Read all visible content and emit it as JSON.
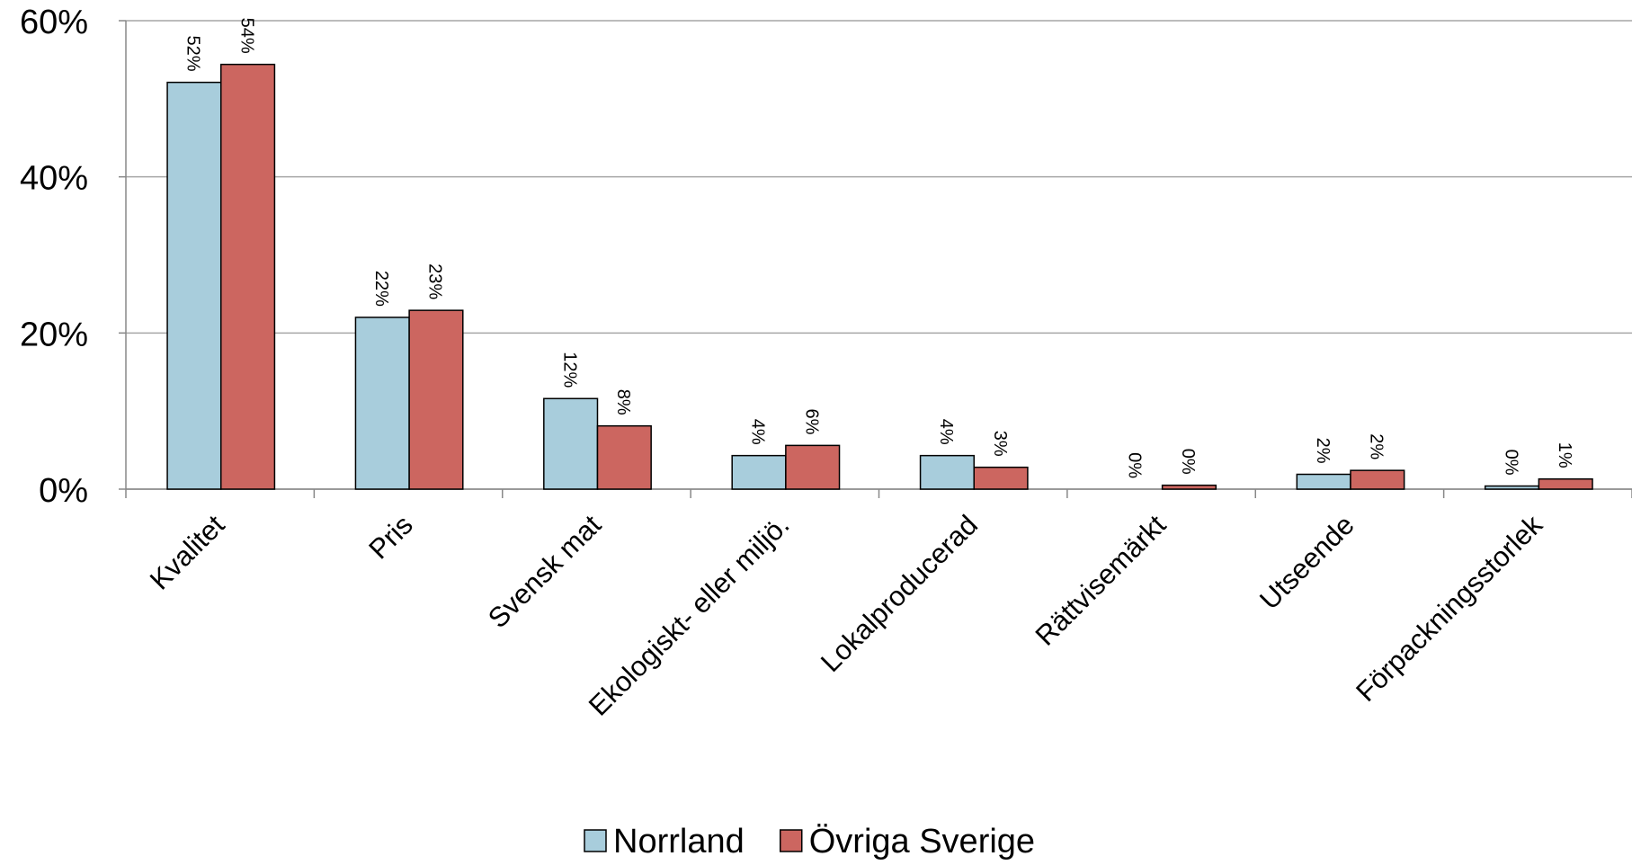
{
  "chart_data": {
    "type": "bar",
    "categories": [
      "Kvalitet",
      "Pris",
      "Svensk mat",
      "Ekologiskt- eller miljö.",
      "Lokalproducerad",
      "Rättvisemärkt",
      "Utseende",
      "Förpackningsstorlek"
    ],
    "series": [
      {
        "name": "Norrland",
        "color": "#a8cddc",
        "values": [
          52.1,
          22,
          11.6,
          4.3,
          4.3,
          0,
          1.9,
          0.4
        ],
        "value_labels": [
          "52%",
          "22%",
          "12%",
          "4%",
          "4%",
          "0%",
          "2%",
          "0%"
        ]
      },
      {
        "name": "Övriga Sverige",
        "color": "#cc6660",
        "values": [
          54.4,
          22.9,
          8.1,
          5.6,
          2.8,
          0.5,
          2.4,
          1.3
        ],
        "value_labels": [
          "54%",
          "23%",
          "8%",
          "6%",
          "3%",
          "0%",
          "2%",
          "1%"
        ]
      }
    ],
    "ylim": [
      0,
      60
    ],
    "yticks": [
      {
        "value": 0,
        "label": "0%"
      },
      {
        "value": 20,
        "label": "20%"
      },
      {
        "value": 40,
        "label": "40%"
      },
      {
        "value": 60,
        "label": "60%"
      }
    ],
    "grid": true,
    "legend": "bottom"
  }
}
